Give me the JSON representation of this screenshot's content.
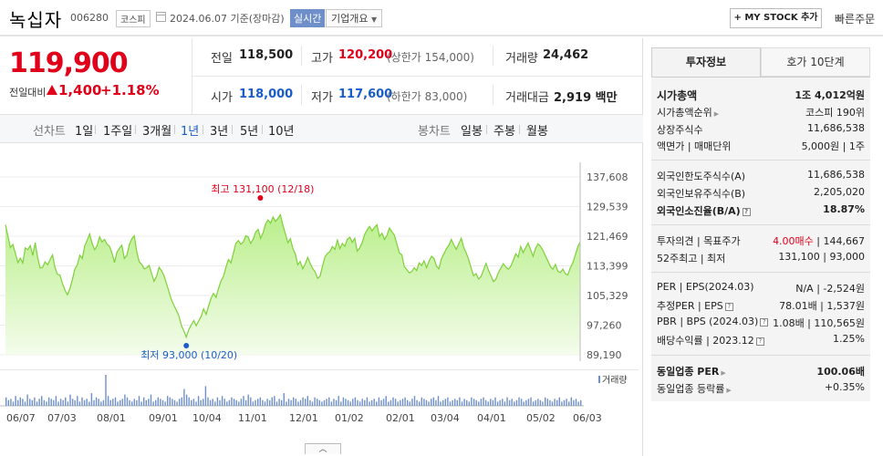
{
  "header": {
    "name": "녹십자",
    "code": "006280",
    "market": "코스피",
    "date": "2024.06.07 기준(장마감)",
    "realtime": "실시간",
    "company_overview": "기업개요",
    "mystock": "+ MY STOCK 추가",
    "quick_order": "빠른주문"
  },
  "price": {
    "current": "119,900",
    "diff_label": "전일대비",
    "diff_value": "1,400",
    "diff_rate": "+1.18%",
    "prev_label": "전일",
    "prev": "118,500",
    "high_label": "고가",
    "high": "120,200",
    "upper_limit": "(상한가 154,000)",
    "volume_label": "거래량",
    "volume": "24,462",
    "open_label": "시가",
    "open": "118,000",
    "low_label": "저가",
    "low": "117,600",
    "lower_limit": "(하한가 83,000)",
    "amount_label": "거래대금",
    "amount": "2,919 백만"
  },
  "chart_nav": {
    "line_label": "선차트",
    "periods": [
      "1일",
      "1주일",
      "3개월",
      "1년",
      "3년",
      "5년",
      "10년"
    ],
    "candle_label": "봉차트",
    "candles": [
      "일봉",
      "주봉",
      "월봉"
    ]
  },
  "chart_data": {
    "type": "area",
    "y_ticks": [
      "137,608",
      "129,539",
      "121,469",
      "113,399",
      "105,329",
      "97,260",
      "89,190"
    ],
    "ylim": [
      89190,
      137608
    ],
    "x_ticks": [
      "06/07",
      "07/03",
      "08/01",
      "09/01",
      "10/04",
      "11/01",
      "12/01",
      "01/02",
      "02/01",
      "03/04",
      "04/01",
      "05/02",
      "06/03"
    ],
    "high_annotation": "최고 131,100 (12/18)",
    "low_annotation": "최저 93,000 (10/20)",
    "volume_legend": "거래량",
    "price_series": [
      124600,
      121500,
      118400,
      119200,
      116800,
      114300,
      115500,
      114200,
      118300,
      117800,
      118900,
      116200,
      119700,
      115600,
      112800,
      113000,
      114500,
      113700,
      115100,
      116400,
      112900,
      111100,
      110900,
      108600,
      106800,
      105500,
      107200,
      109600,
      112500,
      113700,
      116300,
      115400,
      118800,
      120400,
      122100,
      119500,
      117800,
      118900,
      121300,
      119900,
      120600,
      119300,
      118700,
      116900,
      114300,
      117100,
      118200,
      119000,
      115400,
      116300,
      119200,
      120800,
      121600,
      117300,
      114500,
      113800,
      112600,
      112900,
      113500,
      111300,
      109200,
      110500,
      113000,
      112100,
      110700,
      108600,
      106400,
      104200,
      102600,
      101300,
      99800,
      97200,
      95700,
      94000,
      96000,
      97300,
      98500,
      97100,
      98400,
      99600,
      101700,
      100200,
      102500,
      104600,
      105900,
      104800,
      107200,
      109300,
      110500,
      113000,
      115100,
      114200,
      116800,
      119500,
      120300,
      119300,
      119900,
      121600,
      121300,
      119500,
      120700,
      122600,
      123300,
      120900,
      122400,
      124800,
      125900,
      125000,
      126700,
      125500,
      126300,
      127300,
      124500,
      122100,
      119700,
      120800,
      118200,
      116700,
      113700,
      114600,
      112600,
      113900,
      115700,
      114100,
      112700,
      111800,
      110000,
      110600,
      113400,
      115900,
      116800,
      117300,
      118700,
      117900,
      120400,
      118100,
      119500,
      118700,
      120600,
      121200,
      119800,
      120900,
      117400,
      118300,
      119700,
      122000,
      123200,
      124100,
      122900,
      123900,
      124600,
      121400,
      122300,
      120600,
      121700,
      123700,
      122700,
      121800,
      119300,
      116900,
      116400,
      113200,
      112400,
      111500,
      111800,
      112900,
      112100,
      114200,
      113500,
      114800,
      112900,
      114700,
      116000,
      115400,
      113300,
      112600,
      115300,
      116700,
      118100,
      119000,
      120600,
      119100,
      117900,
      119400,
      120900,
      118400,
      116900,
      115100,
      112800,
      110700,
      111300,
      109800,
      110500,
      112300,
      114100,
      112200,
      110700,
      109100,
      109800,
      111600,
      112800,
      114000,
      113100,
      112500,
      113300,
      114900,
      116700,
      115800,
      118700,
      117000,
      118400,
      119600,
      117800,
      116000,
      118200,
      119400,
      118700,
      117600,
      116100,
      114700,
      113200,
      112500,
      113800,
      111900,
      111600,
      112500,
      111300,
      110900,
      112800,
      114200,
      116300,
      118500,
      119900
    ],
    "volume_series": [
      6,
      4,
      5,
      3,
      7,
      4,
      6,
      5,
      3,
      8,
      5,
      4,
      6,
      3,
      5,
      7,
      4,
      3,
      6,
      5,
      4,
      7,
      3,
      5,
      4,
      6,
      3,
      8,
      5,
      4,
      7,
      3,
      6,
      4,
      5,
      3,
      9,
      4,
      6,
      5,
      3,
      4,
      22,
      7,
      4,
      5,
      6,
      3,
      4,
      5,
      8,
      6,
      4,
      3,
      5,
      4,
      7,
      3,
      6,
      4,
      5,
      8,
      3,
      4,
      6,
      5,
      4,
      3,
      7,
      6,
      5,
      4,
      3,
      5,
      6,
      12,
      8,
      6,
      4,
      5,
      3,
      7,
      4,
      5,
      14,
      6,
      4,
      5,
      3,
      6,
      4,
      7,
      5,
      3,
      4,
      6,
      5,
      4,
      3,
      5,
      7,
      4,
      8,
      6,
      3,
      4,
      5,
      6,
      4,
      3,
      5,
      4,
      6,
      7,
      3,
      5,
      4,
      9,
      3,
      5,
      4,
      6,
      5,
      3,
      4,
      6,
      5,
      7,
      4,
      3,
      6,
      5,
      4,
      3,
      4,
      5,
      6,
      3,
      5,
      4,
      7,
      3,
      6,
      5,
      4,
      3,
      5,
      6,
      4,
      3,
      5,
      4,
      6,
      3,
      4,
      5,
      3,
      6,
      4,
      5,
      7,
      3,
      4,
      6,
      5,
      3,
      4,
      5,
      6,
      4,
      3,
      5,
      7,
      4,
      3,
      6,
      5,
      4,
      3,
      5,
      6,
      4,
      7,
      3,
      4,
      5,
      6,
      3,
      4,
      5,
      4,
      6,
      3,
      5,
      4,
      3,
      6,
      5,
      4,
      3,
      5,
      6,
      4,
      3,
      5,
      4,
      6,
      3,
      4,
      5,
      3,
      6,
      4,
      5,
      3,
      4,
      6,
      5,
      3,
      4,
      5,
      6,
      3,
      4,
      5,
      4,
      3,
      6,
      5,
      4,
      3,
      5,
      4,
      6,
      3,
      4,
      5,
      3,
      6,
      4,
      5,
      3,
      4
    ]
  },
  "tabs": {
    "invest": "투자정보",
    "hoga": "호가 10단계"
  },
  "info": {
    "mcap_label": "시가총액",
    "mcap_value": "1조 4,012억원",
    "mcap_rank_label": "시가총액순위",
    "mcap_rank_value": "코스피 190위",
    "shares_label": "상장주식수",
    "shares_value": "11,686,538",
    "par_label": "액면가 | 매매단위",
    "par_value": "5,000원 | 1주",
    "foreign_limit_label": "외국인한도주식수(A)",
    "foreign_limit_value": "11,686,538",
    "foreign_hold_label": "외국인보유주식수(B)",
    "foreign_hold_value": "2,205,020",
    "foreign_ratio_label": "외국인소진율(B/A)",
    "foreign_ratio_value": "18.87%",
    "opinion_label": "투자의견 | 목표주가",
    "opinion_value": "4.00매수",
    "target_value": "144,667",
    "w52_label": "52주최고 | 최저",
    "w52_value": "131,100 | 93,000",
    "per_label": "PER | EPS(2024.03)",
    "per_value": "N/A | -2,524원",
    "est_per_label": "추정PER | EPS",
    "est_per_value": "78.01배 | 1,537원",
    "pbr_label": "PBR | BPS (2024.03)",
    "pbr_value": "1.08배 | 110,565원",
    "dividend_label": "배당수익률 | 2023.12",
    "dividend_value": "1.25%",
    "industry_per_label": "동일업종 PER",
    "industry_per_value": "100.06배",
    "industry_rate_label": "동일업종 등락률",
    "industry_rate_value": "+0.35%"
  }
}
